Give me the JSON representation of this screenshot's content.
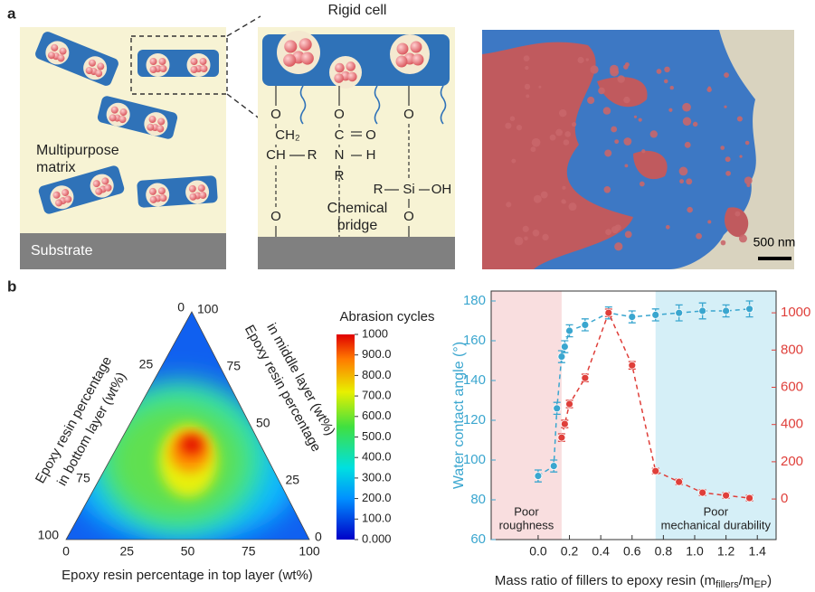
{
  "panel_labels": [
    "a",
    "b"
  ],
  "schematic": {
    "rigid_cell": "Rigid cell",
    "matrix": [
      "Multipurpose",
      "matrix"
    ],
    "substrate": "Substrate",
    "chemical_bridge": [
      "Chemical",
      "bridge"
    ],
    "chemistry": [
      "O",
      "CH₂",
      "CH",
      "R",
      "O",
      "O",
      "C",
      "O",
      "N",
      "H",
      "R",
      "O",
      "R",
      "Si",
      "OH",
      "O"
    ]
  },
  "sem": {
    "scale_bar": "500 nm"
  },
  "chart_data": [
    {
      "type": "ternary",
      "bottom_label": "Epoxy resin percentage in top layer (wt%)",
      "left_label": [
        "Epoxy resin percentage",
        "in bottom layer (wt%)"
      ],
      "right_label": [
        "Epoxy resin percentage",
        "in middle layer (wt%)"
      ],
      "bottom_ticks": [
        0,
        25,
        50,
        75,
        100
      ],
      "left_ticks": [
        0,
        25,
        75,
        100
      ],
      "right_ticks": [
        0,
        25,
        50,
        75,
        100
      ],
      "colorbar": {
        "title": "Abrasion cycles",
        "lim": [
          0,
          1000
        ],
        "ticks": [
          {
            "value": 0,
            "label": "0.000"
          },
          {
            "value": 100,
            "label": "100.0"
          },
          {
            "value": 200,
            "label": "200.0"
          },
          {
            "value": 300,
            "label": "300.0"
          },
          {
            "value": 400,
            "label": "400.0"
          },
          {
            "value": 500,
            "label": "500.0"
          },
          {
            "value": 600,
            "label": "600.0"
          },
          {
            "value": 700,
            "label": "700.0"
          },
          {
            "value": 800,
            "label": "800.0"
          },
          {
            "value": 900,
            "label": "900.0"
          },
          1000
        ]
      }
    },
    {
      "type": "line",
      "xlabel": [
        "Mass ratio of fillers to epoxy resin (m",
        "fillers",
        "/m",
        "EP",
        ")"
      ],
      "ylabel": "Water contact angle (°)",
      "x": [
        0,
        0.1,
        0.12,
        0.15,
        0.17,
        0.2,
        0.3,
        0.45,
        0.6,
        0.75,
        0.9,
        1.05,
        1.2,
        1.35
      ],
      "series": [
        {
          "name": "Water contact angle",
          "color": "#3aa6cf",
          "axis": "y",
          "values": [
            92,
            97,
            126,
            152,
            157,
            165,
            168,
            174,
            172,
            173,
            174,
            175,
            175,
            176
          ],
          "errors": [
            3,
            3,
            3,
            3,
            3,
            3,
            3,
            3,
            3,
            3,
            4,
            4,
            3,
            4
          ]
        },
        {
          "name": "Abrasion cycles",
          "color": "#df3f3a",
          "axis": "y2",
          "values": [
            null,
            null,
            null,
            330,
            403,
            510,
            650,
            1000,
            718,
            150,
            92,
            34,
            19,
            5
          ],
          "errors": [
            null,
            null,
            null,
            20,
            20,
            20,
            20,
            20,
            20,
            15,
            15,
            15,
            15,
            15
          ]
        }
      ],
      "xlim": [
        -0.3,
        1.52
      ],
      "ylim": [
        60,
        185
      ],
      "y2lim": [
        -218,
        1117
      ],
      "xticks": [
        {
          "value": 0,
          "label": "0.0"
        },
        {
          "value": 0.2,
          "label": "0.2"
        },
        {
          "value": 0.4,
          "label": "0.4"
        },
        {
          "value": 0.6,
          "label": "0.6"
        },
        {
          "value": 0.8,
          "label": "0.8"
        },
        {
          "value": 1,
          "label": "1.0"
        },
        {
          "value": 1.2,
          "label": "1.2"
        },
        {
          "value": 1.4,
          "label": "1.4"
        }
      ],
      "yticks": [
        60,
        80,
        100,
        120,
        140,
        160,
        180
      ],
      "y2ticks": [
        0,
        200,
        400,
        600,
        800,
        1000
      ],
      "spans": [
        {
          "from": -0.3,
          "to": 0.15,
          "color": "#f9dedf",
          "label": [
            "Poor",
            "roughness"
          ]
        },
        {
          "from": 0.75,
          "to": 1.52,
          "color": "#d5eff7",
          "label": [
            "Poor",
            "mechanical durability"
          ]
        }
      ]
    }
  ]
}
